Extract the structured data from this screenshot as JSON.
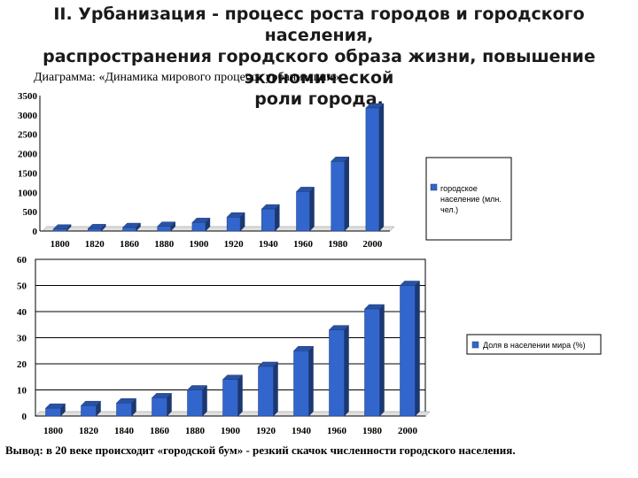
{
  "slide": {
    "title_line1": "II. Урбанизация - процесс роста городов и городского населения,",
    "title_line2": "распространения городского образа жизни, повышение экономической",
    "title_line3": "роли города.",
    "caption": "Диаграмма: «Динамика мирового процесса урбанизации».",
    "conclusion": "Вывод: в 20 веке происходит «городской бум» - резкий скачок численности городского населения."
  },
  "chart_data": [
    {
      "type": "bar",
      "categories": [
        "1800",
        "1820",
        "1860",
        "1880",
        "1900",
        "1920",
        "1940",
        "1960",
        "1980",
        "2000"
      ],
      "series": [
        {
          "name": "городское население (млн. чел.)",
          "values": [
            50,
            60,
            90,
            120,
            220,
            360,
            570,
            1020,
            1800,
            3180
          ]
        }
      ],
      "ylim": [
        0,
        3500
      ],
      "yticks": [
        0,
        500,
        1000,
        1500,
        2000,
        2500,
        3000,
        3500
      ],
      "legend": [
        "городское",
        "население (млн.",
        "чел.)"
      ],
      "legend_position": "right",
      "grid": false,
      "bar_color": "#3366cc"
    },
    {
      "type": "bar",
      "categories": [
        "1800",
        "1820",
        "1840",
        "1860",
        "1880",
        "1900",
        "1920",
        "1940",
        "1960",
        "1980",
        "2000"
      ],
      "series": [
        {
          "name": "Доля в населении мира (%)",
          "values": [
            3,
            4,
            5,
            7,
            10,
            14,
            19,
            25,
            33,
            41,
            50
          ]
        }
      ],
      "ylim": [
        0,
        60
      ],
      "yticks": [
        0,
        10,
        20,
        30,
        40,
        50,
        60
      ],
      "legend": [
        "Доля в населении мира (%)"
      ],
      "legend_position": "right",
      "grid": true,
      "bar_color": "#3366cc"
    }
  ]
}
